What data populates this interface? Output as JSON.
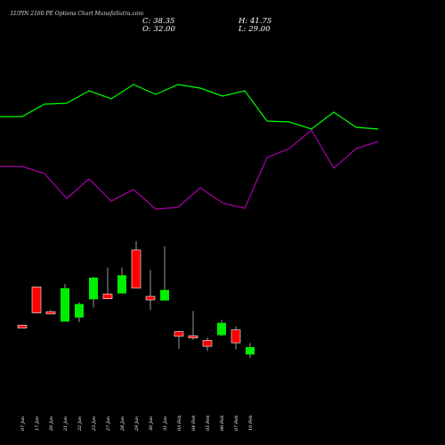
{
  "header": {
    "title": "LUPIN 2160  PE Options  Chart MunafaSutra.com",
    "close": "C: 38.35",
    "high": "H: 41.75",
    "open": "O: 32.00",
    "low": "L: 29.00"
  },
  "colors": {
    "background": "#000000",
    "bull": "#00ee00",
    "bear": "#ff0000",
    "upper_line": "#00ff00",
    "lower_line": "#aa00aa",
    "wick": "#999999"
  },
  "chart_data": {
    "type": "candlestick",
    "title": "LUPIN 2160  PE Options  Chart MunafaSutra.com",
    "categories": [
      "07 Jan",
      "17 Jan",
      "20 Jan",
      "21 Jan",
      "22 Jan",
      "23 Jan",
      "27 Jan",
      "28 Jan",
      "29 Jan",
      "30 Jan",
      "31 Jan",
      "03 Feb",
      "04 Feb",
      "05 Feb",
      "06 Feb",
      "07 Feb",
      "10 Feb"
    ],
    "candles": [
      {
        "o": 57.0,
        "h": 57.0,
        "l": 54.5,
        "c": 54.5
      },
      {
        "o": 89.5,
        "h": 89.5,
        "l": 67.5,
        "c": 67.5
      },
      {
        "o": 68.5,
        "h": 70.0,
        "l": 66.5,
        "c": 66.5
      },
      {
        "o": 60.0,
        "h": 92.0,
        "l": 60.0,
        "c": 88.5
      },
      {
        "o": 63.5,
        "h": 76.5,
        "l": 59.5,
        "c": 75.0
      },
      {
        "o": 79.0,
        "h": 98.0,
        "l": 72.0,
        "c": 97.5
      },
      {
        "o": 83.5,
        "h": 106.0,
        "l": 79.5,
        "c": 79.5
      },
      {
        "o": 84.0,
        "h": 106.0,
        "l": 84.0,
        "c": 99.5
      },
      {
        "o": 121.0,
        "h": 128.5,
        "l": 88.5,
        "c": 88.5
      },
      {
        "o": 81.5,
        "h": 104.0,
        "l": 70.0,
        "c": 78.5
      },
      {
        "o": 78.0,
        "h": 124.0,
        "l": 78.0,
        "c": 87.0
      },
      {
        "o": 51.5,
        "h": 52.0,
        "l": 37.0,
        "c": 47.5
      },
      {
        "o": 48.0,
        "h": 69.0,
        "l": 44.5,
        "c": 47.5
      },
      {
        "o": 44.0,
        "h": 46.5,
        "l": 35.0,
        "c": 39.0
      },
      {
        "o": 48.5,
        "h": 61.5,
        "l": 47.5,
        "c": 59.0
      },
      {
        "o": 53.0,
        "h": 56.0,
        "l": 36.5,
        "c": 42.0
      },
      {
        "o": 32.0,
        "h": 41.75,
        "l": 29.0,
        "c": 38.35
      }
    ],
    "upper_line": [
      131,
      131,
      117,
      116,
      102,
      111,
      95,
      106,
      95,
      99,
      108,
      102,
      136,
      137,
      145,
      126,
      143,
      145
    ],
    "lower_line": [
      187,
      187,
      195,
      223,
      201,
      226,
      213,
      235,
      233,
      211,
      228,
      234,
      177,
      167,
      146,
      189,
      167,
      159
    ],
    "x_labels": [
      "07 Jan",
      "17 Jan",
      "20 Jan",
      "21 Jan",
      "22 Jan",
      "23 Jan",
      "27 Jan",
      "28 Jan",
      "29 Jan",
      "30 Jan",
      "31 Jan",
      "03 Feb",
      "04 Feb",
      "05 Feb",
      "06 Feb",
      "07 Feb",
      "10 Feb"
    ],
    "grid": false,
    "legend": "none"
  }
}
